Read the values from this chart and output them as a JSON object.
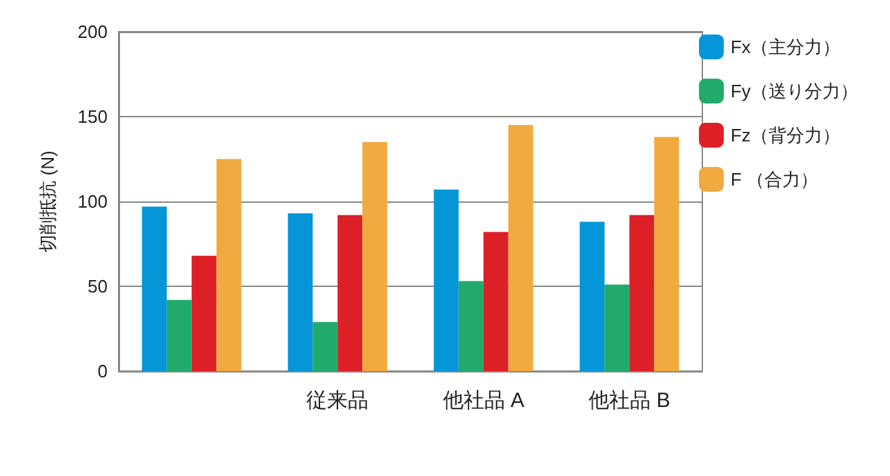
{
  "chart_data": {
    "type": "bar",
    "ylabel": "切削抵抗 (N)",
    "categories": [
      null,
      "従来品",
      "他社品 A",
      "他社品 B"
    ],
    "series": [
      {
        "name": "Fx（主分力）",
        "color": "#0596d8",
        "values": [
          97,
          93,
          107,
          88
        ]
      },
      {
        "name": "Fy（送り分力）",
        "color": "#22aa6c",
        "values": [
          42,
          29,
          53,
          51
        ]
      },
      {
        "name": "Fz（背分力）",
        "color": "#dd1f26",
        "values": [
          68,
          92,
          82,
          92
        ]
      },
      {
        "name": "F （合力）",
        "color": "#f1aa3f",
        "values": [
          125,
          135,
          145,
          138
        ]
      }
    ],
    "ylim": [
      0,
      200
    ],
    "yticks": [
      0,
      50,
      100,
      150,
      200
    ],
    "grid": "y",
    "legend": "right"
  }
}
